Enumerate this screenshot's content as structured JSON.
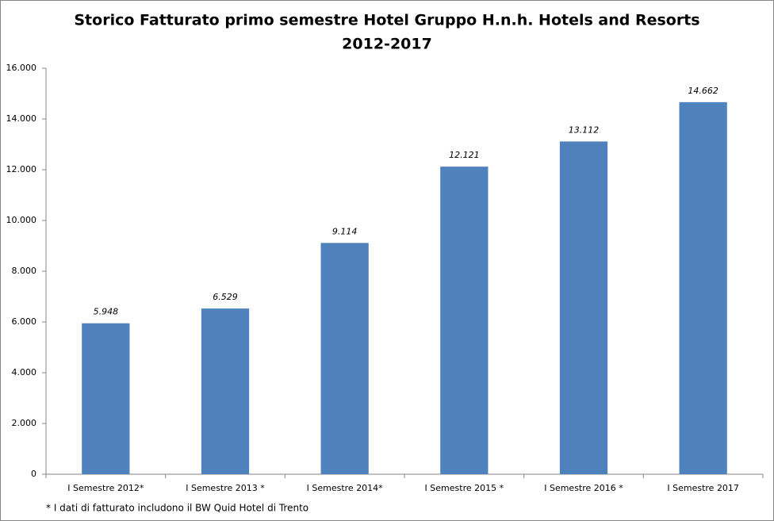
{
  "chart_data": {
    "type": "bar",
    "title": [
      "Storico Fatturato primo semestre Hotel Gruppo H.n.h. Hotels and Resorts",
      "2012-2017"
    ],
    "categories": [
      "I Semestre 2012*",
      "I Semestre 2013 *",
      "I Semestre 2014*",
      "I Semestre 2015 *",
      "I Semestre 2016 *",
      "I Semestre 2017"
    ],
    "values": [
      5948,
      6529,
      9114,
      12121,
      13112,
      14662
    ],
    "value_labels": [
      "5.948",
      "6.529",
      "9.114",
      "12.121",
      "13.112",
      "14.662"
    ],
    "color": "#4f81bd",
    "ylim": [
      0,
      16000
    ],
    "yticks": [
      0,
      {
        "value": 2000,
        "label": "2.000"
      },
      {
        "value": 4000,
        "label": "4.000"
      },
      {
        "value": 6000,
        "label": "6.000"
      },
      {
        "value": 8000,
        "label": "8.000"
      },
      {
        "value": 10000,
        "label": "10.000"
      },
      {
        "value": 12000,
        "label": "12.000"
      },
      {
        "value": 14000,
        "label": "14.000"
      },
      {
        "value": 16000,
        "label": "16.000"
      }
    ],
    "grid": false,
    "footnote": "* I dati di fatturato includono il BW Quid Hotel di Trento"
  }
}
